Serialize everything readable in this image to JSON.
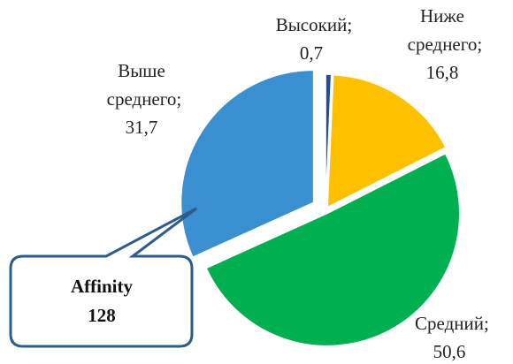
{
  "chart_data": {
    "type": "pie",
    "categories": [
      "Высокий",
      "Ниже среднего",
      "Средний",
      "Выше среднего"
    ],
    "values": [
      0.7,
      16.8,
      50.6,
      31.7
    ],
    "value_labels": [
      "0,7",
      "16,8",
      "50,6",
      "31,7"
    ],
    "label_separator": ";",
    "colors": [
      "#1f4e9a",
      "#ffc000",
      "#00b050",
      "#3a8fd0"
    ],
    "callout": {
      "title": "Affinity",
      "value": "128"
    }
  }
}
